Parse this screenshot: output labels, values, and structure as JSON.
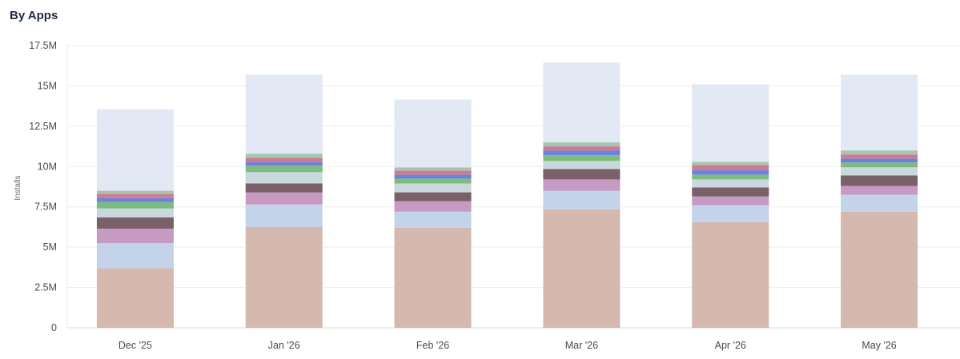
{
  "header": {
    "title": "By Apps"
  },
  "chart_data": {
    "type": "bar",
    "stacked": true,
    "title": "By Apps",
    "xlabel": "",
    "ylabel": "Installs",
    "ylim": [
      0,
      17500000
    ],
    "yticks": [
      0,
      2500000,
      5000000,
      7500000,
      10000000,
      12500000,
      15000000,
      17500000
    ],
    "ytick_labels": [
      "0",
      "2.5M",
      "5M",
      "7.5M",
      "10M",
      "12.5M",
      "15M",
      "17.5M"
    ],
    "grid": true,
    "legend": "none",
    "categories": [
      "Dec '25",
      "Jan '26",
      "Feb '26",
      "Mar '26",
      "Apr '26",
      "May '26"
    ],
    "series": [
      {
        "color": "#d5b8ae",
        "values": [
          3700000,
          6250000,
          6200000,
          7350000,
          6550000,
          7200000
        ]
      },
      {
        "color": "#c3d3ea",
        "values": [
          1550000,
          1400000,
          1000000,
          1150000,
          1050000,
          1050000
        ]
      },
      {
        "color": "#c69ac2",
        "values": [
          900000,
          750000,
          650000,
          700000,
          550000,
          550000
        ]
      },
      {
        "color": "#7a6069",
        "values": [
          700000,
          550000,
          550000,
          650000,
          550000,
          650000
        ]
      },
      {
        "color": "#cad7dd",
        "values": [
          550000,
          700000,
          550000,
          500000,
          500000,
          500000
        ]
      },
      {
        "color": "#7bbd7e",
        "values": [
          400000,
          400000,
          300000,
          350000,
          300000,
          300000
        ]
      },
      {
        "color": "#6e82dc",
        "values": [
          250000,
          250000,
          250000,
          300000,
          300000,
          250000
        ]
      },
      {
        "color": "#d27a8f",
        "values": [
          250000,
          250000,
          250000,
          250000,
          300000,
          250000
        ]
      },
      {
        "color": "#a3c7b1",
        "values": [
          200000,
          250000,
          200000,
          250000,
          200000,
          250000
        ]
      },
      {
        "color": "#e2e9f4",
        "values": [
          5050000,
          4900000,
          4200000,
          4950000,
          4800000,
          4700000
        ]
      }
    ]
  }
}
